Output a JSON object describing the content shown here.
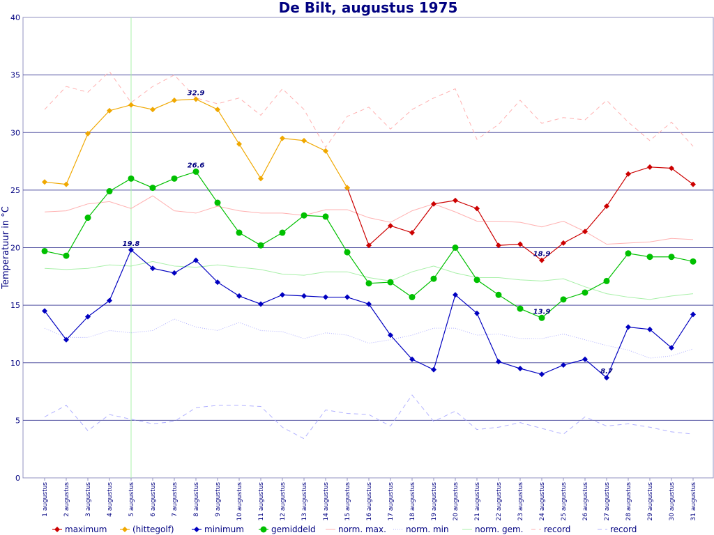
{
  "chart_data": {
    "type": "line",
    "title": "De Bilt, augustus 1975",
    "xlabel": "",
    "ylabel": "Temperatuur in °C",
    "ylim": [
      0,
      40
    ],
    "yticks": [
      0,
      5,
      10,
      15,
      20,
      25,
      30,
      35,
      40
    ],
    "grid": true,
    "legend_position": "bottom",
    "categories": [
      "1 augustus",
      "2 augustus",
      "3 augustus",
      "4 augustus",
      "5 augustus",
      "6 augustus",
      "7 augustus",
      "8 augustus",
      "9 augustus",
      "10 augustus",
      "11 augustus",
      "12 augustus",
      "13 augustus",
      "14 augustus",
      "15 augustus",
      "16 augustus",
      "17 augustus",
      "18 augustus",
      "19 augustus",
      "20 augustus",
      "21 augustus",
      "22 augustus",
      "23 augustus",
      "24 augustus",
      "25 augustus",
      "26 augustus",
      "27 augustus",
      "28 augustus",
      "29 augustus",
      "30 augustus",
      "31 augustus"
    ],
    "highlight_category": "5 augustus",
    "series": [
      {
        "name": "record",
        "color": "#ffb0b0",
        "style": "dashed",
        "marker": "none",
        "values": [
          32.0,
          34.0,
          33.5,
          35.3,
          32.6,
          34.0,
          35.0,
          33.0,
          32.5,
          33.0,
          31.5,
          33.8,
          32.0,
          28.7,
          31.4,
          32.2,
          30.3,
          32.0,
          33.0,
          33.8,
          29.4,
          30.7,
          32.8,
          30.8,
          31.3,
          31.1,
          32.8,
          30.9,
          29.3,
          30.9,
          28.8
        ]
      },
      {
        "name": "norm. max.",
        "color": "#ffb0b0",
        "style": "solid-thin",
        "marker": "none",
        "values": [
          23.1,
          23.2,
          23.8,
          24.0,
          23.4,
          24.5,
          23.2,
          23.0,
          23.6,
          23.2,
          23.0,
          23.0,
          22.8,
          23.3,
          23.3,
          22.6,
          22.2,
          23.2,
          23.8,
          23.1,
          22.3,
          22.3,
          22.2,
          21.8,
          22.3,
          21.4,
          20.3,
          20.4,
          20.5,
          20.8,
          20.7
        ]
      },
      {
        "name": "norm. gem.",
        "color": "#a8f0a8",
        "style": "solid-thin",
        "marker": "none",
        "values": [
          18.2,
          18.1,
          18.2,
          18.5,
          18.4,
          18.8,
          18.4,
          18.3,
          18.5,
          18.3,
          18.1,
          17.7,
          17.6,
          17.9,
          17.9,
          17.4,
          17.1,
          17.9,
          18.4,
          17.8,
          17.4,
          17.4,
          17.2,
          17.1,
          17.3,
          16.6,
          16.0,
          15.7,
          15.5,
          15.8,
          16.0
        ]
      },
      {
        "name": "norm. min",
        "color": "#b0b0ff",
        "style": "dotted",
        "marker": "none",
        "values": [
          13.0,
          12.2,
          12.2,
          12.8,
          12.6,
          12.8,
          13.8,
          13.1,
          12.8,
          13.5,
          12.8,
          12.7,
          12.1,
          12.6,
          12.4,
          11.7,
          12.0,
          12.4,
          13.0,
          13.0,
          12.4,
          12.5,
          12.1,
          12.1,
          12.5,
          12.0,
          11.5,
          11.1,
          10.4,
          10.6,
          11.2
        ]
      },
      {
        "name": "record",
        "color": "#b0b0ff",
        "style": "dashed",
        "marker": "none",
        "values": [
          5.3,
          6.3,
          4.1,
          5.5,
          5.1,
          4.7,
          4.9,
          6.1,
          6.3,
          6.3,
          6.2,
          4.4,
          3.4,
          5.9,
          5.6,
          5.5,
          4.5,
          7.2,
          4.9,
          5.8,
          4.2,
          4.4,
          4.8,
          4.3,
          3.8,
          5.3,
          4.5,
          4.7,
          4.4,
          4.0,
          3.8
        ]
      },
      {
        "name": "minimum",
        "color": "#0000c0",
        "style": "solid",
        "marker": "diamond",
        "values": [
          14.5,
          12.0,
          14.0,
          15.4,
          19.8,
          18.2,
          17.8,
          18.9,
          17.0,
          15.8,
          15.1,
          15.9,
          15.8,
          15.7,
          15.7,
          15.1,
          12.4,
          10.3,
          9.4,
          15.9,
          14.3,
          10.1,
          9.5,
          9.0,
          9.8,
          10.3,
          8.7,
          13.1,
          12.9,
          11.3,
          14.2
        ]
      },
      {
        "name": "gemiddeld",
        "color": "#00c000",
        "style": "solid",
        "marker": "circle",
        "values": [
          19.7,
          19.3,
          22.6,
          24.9,
          26.0,
          25.2,
          26.0,
          26.6,
          23.9,
          21.3,
          20.2,
          21.3,
          22.8,
          22.7,
          19.6,
          16.9,
          17.0,
          15.7,
          17.3,
          20.0,
          17.2,
          15.9,
          14.7,
          13.9,
          15.5,
          16.1,
          17.1,
          19.5,
          19.2,
          19.2,
          18.8
        ]
      },
      {
        "name": "maximum",
        "color": "#cc0000",
        "style": "solid",
        "marker": "diamond",
        "values": [
          null,
          null,
          null,
          null,
          null,
          null,
          null,
          null,
          null,
          null,
          null,
          null,
          null,
          null,
          25.2,
          20.2,
          21.9,
          21.3,
          23.8,
          24.1,
          23.4,
          20.2,
          20.3,
          18.9,
          20.4,
          21.4,
          23.6,
          26.4,
          27.0,
          26.9,
          25.5
        ]
      },
      {
        "name": "(hittegolf)",
        "color": "#f0a800",
        "style": "solid",
        "marker": "diamond",
        "values": [
          25.7,
          25.5,
          29.9,
          31.9,
          32.4,
          32.0,
          32.8,
          32.9,
          32.0,
          29.0,
          26.0,
          29.5,
          29.3,
          28.4,
          25.2,
          null,
          null,
          null,
          null,
          null,
          null,
          null,
          null,
          null,
          null,
          null,
          null,
          null,
          null,
          null,
          null
        ]
      }
    ],
    "annotations": [
      {
        "text": "32.9",
        "category": "8 augustus",
        "value": 32.9
      },
      {
        "text": "26.6",
        "category": "8 augustus",
        "value": 26.6
      },
      {
        "text": "19.8",
        "category": "5 augustus",
        "value": 19.8
      },
      {
        "text": "18.9",
        "category": "24 augustus",
        "value": 18.9
      },
      {
        "text": "13.9",
        "category": "24 augustus",
        "value": 13.9
      },
      {
        "text": "8.7",
        "category": "27 augustus",
        "value": 8.7
      }
    ],
    "legend": [
      {
        "label": "maximum",
        "color": "#cc0000",
        "style": "solid",
        "marker": "diamond"
      },
      {
        "label": "(hittegolf)",
        "color": "#f0a800",
        "style": "solid",
        "marker": "diamond"
      },
      {
        "label": "minimum",
        "color": "#0000c0",
        "style": "solid",
        "marker": "diamond"
      },
      {
        "label": "gemiddeld",
        "color": "#00c000",
        "style": "solid",
        "marker": "circle"
      },
      {
        "label": "norm. max.",
        "color": "#ffb0b0",
        "style": "solid-thin",
        "marker": "none"
      },
      {
        "label": "norm. min",
        "color": "#b0b0ff",
        "style": "dotted",
        "marker": "none"
      },
      {
        "label": "norm. gem.",
        "color": "#a8f0a8",
        "style": "solid-thin",
        "marker": "none"
      },
      {
        "label": "record",
        "color": "#ffb0b0",
        "style": "dashed",
        "marker": "none"
      },
      {
        "label": "record",
        "color": "#b0b0ff",
        "style": "dashed",
        "marker": "none"
      }
    ]
  }
}
